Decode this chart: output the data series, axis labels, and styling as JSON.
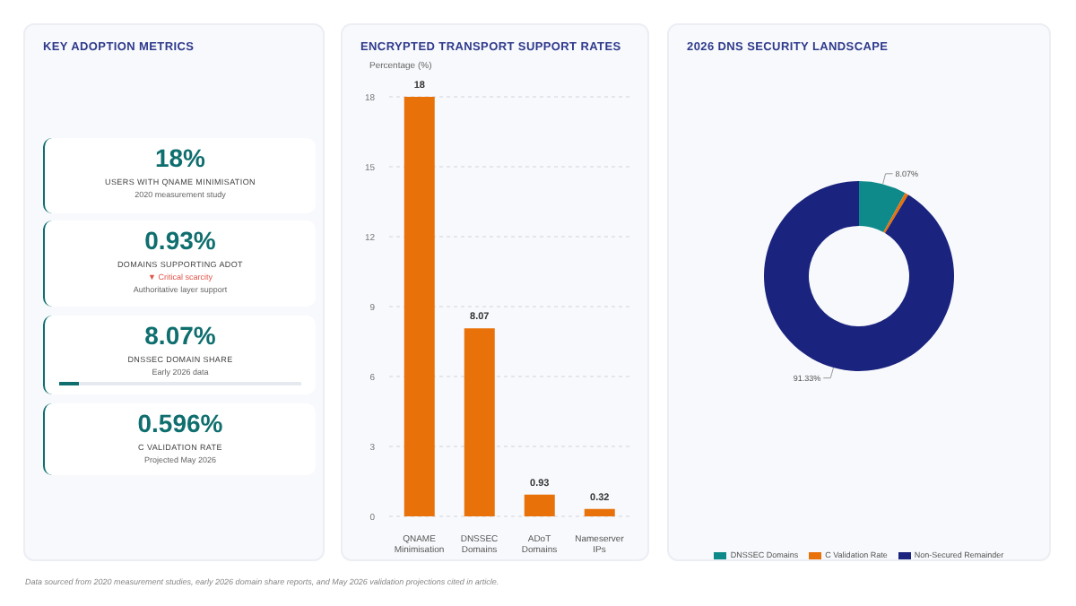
{
  "chart_data": [
    {
      "type": "other",
      "title": "KEY ADOPTION METRICS",
      "categories": [
        "USERS WITH QNAME MINIMISATION",
        "DOMAINS SUPPORTING ADOT",
        "DNSSEC DOMAIN SHARE",
        "C VALIDATION RATE"
      ],
      "values": [
        18,
        0.93,
        8.07,
        0.596
      ],
      "value_labels": [
        "18%",
        "0.93%",
        "8.07%",
        "0.596%"
      ],
      "annotations": [
        "2020 measurement study",
        "▼ Critical scarcity",
        "Authoritative layer support",
        "Early 2026 data",
        "Projected May 2026"
      ]
    },
    {
      "type": "bar",
      "title": "ENCRYPTED TRANSPORT SUPPORT RATES",
      "ylabel": "Percentage (%)",
      "categories": [
        "QNAME Minimisation",
        "DNSSEC Domains",
        "ADoT Domains",
        "Nameserver IPs"
      ],
      "values": [
        18,
        8.07,
        0.93,
        0.32
      ],
      "color": "#e8710a",
      "ylim": [
        0,
        18
      ],
      "yticks": [
        0,
        3,
        6,
        9,
        12,
        15,
        18
      ],
      "grid": "y",
      "data_labels": true
    },
    {
      "type": "donut",
      "title": "2026 DNS SECURITY LANDSCAPE",
      "categories": [
        "DNSSEC Domains",
        "C Validation Rate",
        "Non-Secured Remainder"
      ],
      "values": [
        8.07,
        0.596,
        91.33
      ],
      "colors": [
        "#0f8a8a",
        "#e8710a",
        "#1a237e"
      ],
      "value_labels": [
        "8.07%",
        null,
        "91.33%"
      ],
      "legend": "bottom",
      "annotations": [
        "Data sourced from 2020 measurement studies, early 2026 domain share reports, and May 2026 validation projections cited in article."
      ]
    }
  ]
}
